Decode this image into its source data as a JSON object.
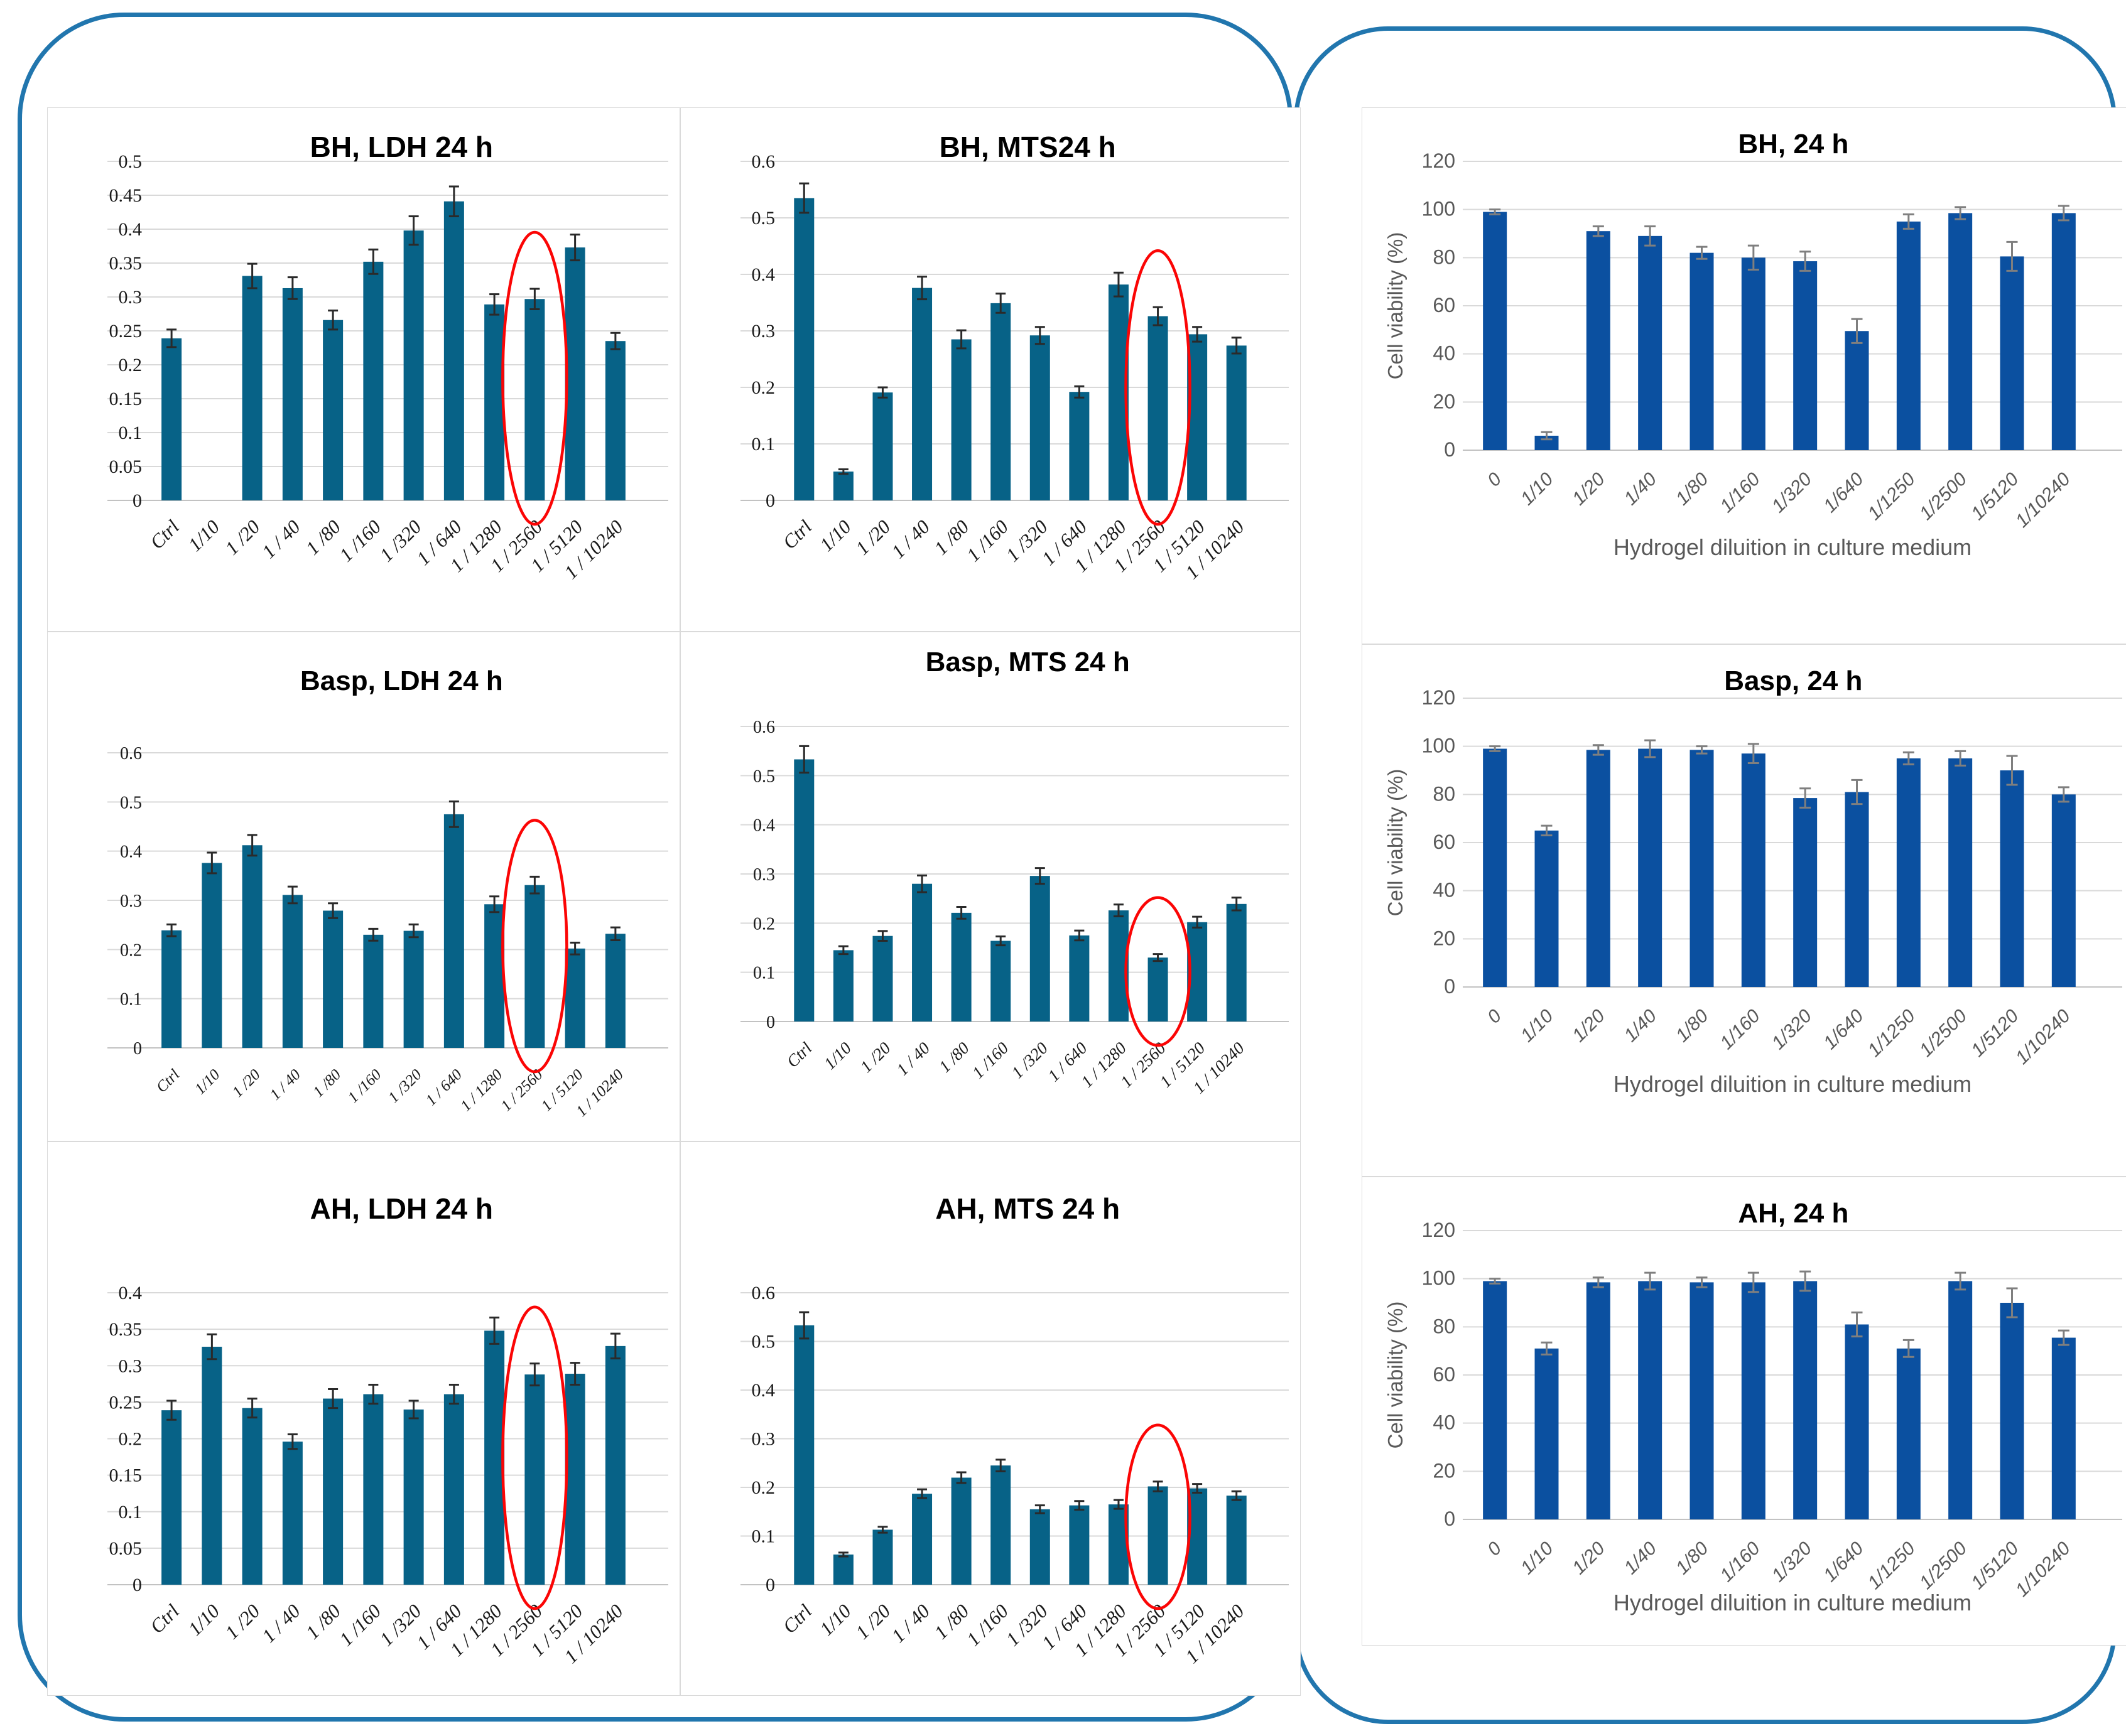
{
  "colors": {
    "panel_border": "#2176ae",
    "left_bar": "#076287",
    "right_bar": "#0b50a0",
    "gridline": "#d9d9d9",
    "baseline": "#c2c2c2",
    "cell_border": "#dadada",
    "error_left": "#2a2a2a",
    "error_right": "#7f7f7f",
    "highlight_ellipse": "#fb0505",
    "right_text": "#595959",
    "left_text": "#1a1a1a",
    "title_text": "#000000"
  },
  "artifacts": {
    "erased_title_dashes": "-- -  -- -- --- -  - -"
  },
  "chart_data": [
    {
      "id": "bh-ldh",
      "panel": "left",
      "type": "bar",
      "title": "BH, LDH 24 h",
      "categories": [
        "Ctrl",
        "1/10",
        "1 /20",
        "1 / 40",
        "1 /80",
        "1 /160",
        "1 /320",
        "1 / 640",
        "1 / 1280",
        "1 / 2560",
        "1 / 5120",
        "1 / 10240"
      ],
      "values": [
        0.239,
        0,
        0.331,
        0.313,
        0.266,
        0.352,
        0.398,
        0.441,
        0.289,
        0.297,
        0.373,
        0.235
      ],
      "errors": [
        0.013,
        0,
        0.018,
        0.016,
        0.014,
        0.018,
        0.021,
        0.022,
        0.015,
        0.015,
        0.019,
        0.012
      ],
      "ylim": [
        0,
        0.5
      ],
      "ytick_step": 0.05,
      "ytick_labels": [
        "0",
        "0.05",
        "0.1",
        "0.15",
        "0.2",
        "0.25",
        "0.3",
        "0.35",
        "0.4",
        "0.45",
        "0.5"
      ],
      "grid": true,
      "circled_category": "1 / 2560",
      "circled_index": 9
    },
    {
      "id": "bh-mts",
      "panel": "left",
      "type": "bar",
      "title": "BH, MTS24 h",
      "categories": [
        "Ctrl",
        "1/10",
        "1 /20",
        "1 / 40",
        "1 /80",
        "1 /160",
        "1 /320",
        "1 / 640",
        "1 / 1280",
        "1 / 2560",
        "1 / 5120",
        "1 / 10240"
      ],
      "values": [
        0.535,
        0.051,
        0.191,
        0.376,
        0.285,
        0.349,
        0.292,
        0.192,
        0.382,
        0.326,
        0.294,
        0.274
      ],
      "errors": [
        0.026,
        0.004,
        0.009,
        0.02,
        0.016,
        0.017,
        0.015,
        0.01,
        0.021,
        0.016,
        0.013,
        0.014
      ],
      "ylim": [
        0,
        0.6
      ],
      "ytick_step": 0.1,
      "ytick_labels": [
        "0",
        "0.1",
        "0.2",
        "0.3",
        "0.4",
        "0.5",
        "0.6"
      ],
      "grid": true,
      "circled_category": "1 / 2560",
      "circled_index": 9
    },
    {
      "id": "basp-ldh",
      "panel": "left",
      "type": "bar",
      "title": "Basp, LDH 24 h",
      "categories": [
        "Ctrl",
        "1/10",
        "1 /20",
        "1 / 40",
        "1 /80",
        "1 /160",
        "1 /320",
        "1 / 640",
        "1 / 1280",
        "1 / 2560",
        "1 / 5120",
        "1 / 10240"
      ],
      "values": [
        0.239,
        0.376,
        0.412,
        0.311,
        0.279,
        0.23,
        0.238,
        0.475,
        0.292,
        0.331,
        0.202,
        0.232
      ],
      "errors": [
        0.012,
        0.021,
        0.021,
        0.017,
        0.015,
        0.012,
        0.013,
        0.026,
        0.016,
        0.017,
        0.012,
        0.013
      ],
      "ylim": [
        0,
        0.6
      ],
      "ytick_step": 0.1,
      "ytick_labels": [
        "0",
        "0.1",
        "0.2",
        "0.3",
        "0.4",
        "0.5",
        "0.6"
      ],
      "grid": true,
      "circled_category": "1 / 2560",
      "circled_index": 9
    },
    {
      "id": "basp-mts",
      "panel": "left",
      "type": "bar",
      "title": "Basp, MTS 24 h",
      "categories": [
        "Ctrl",
        "1/10",
        "1 /20",
        "1 / 40",
        "1 /80",
        "1 /160",
        "1 /320",
        "1 / 640",
        "1 / 1280",
        "1 / 2560",
        "1 / 5120",
        "1 / 10240"
      ],
      "values": [
        0.533,
        0.145,
        0.174,
        0.28,
        0.221,
        0.164,
        0.296,
        0.175,
        0.226,
        0.13,
        0.202,
        0.239
      ],
      "errors": [
        0.027,
        0.008,
        0.01,
        0.017,
        0.012,
        0.009,
        0.016,
        0.01,
        0.012,
        0.007,
        0.011,
        0.013
      ],
      "ylim": [
        0,
        0.6
      ],
      "ytick_step": 0.1,
      "ytick_labels": [
        "0",
        "0.1",
        "0.2",
        "0.3",
        "0.4",
        "0.5",
        "0.6"
      ],
      "grid": true,
      "circled_category": "1 / 2560",
      "circled_index": 9
    },
    {
      "id": "ah-ldh",
      "panel": "left",
      "type": "bar",
      "title": "AH, LDH 24 h",
      "categories": [
        "Ctrl",
        "1/10",
        "1 /20",
        "1 / 40",
        "1 /80",
        "1 /160",
        "1 /320",
        "1 / 640",
        "1 / 1280",
        "1 / 2560",
        "1 / 5120",
        "1 / 10240"
      ],
      "values": [
        0.239,
        0.326,
        0.242,
        0.196,
        0.255,
        0.261,
        0.24,
        0.261,
        0.348,
        0.288,
        0.289,
        0.327
      ],
      "errors": [
        0.013,
        0.017,
        0.013,
        0.01,
        0.013,
        0.013,
        0.012,
        0.013,
        0.018,
        0.015,
        0.015,
        0.017
      ],
      "ylim": [
        0,
        0.4
      ],
      "ytick_step": 0.05,
      "ytick_labels": [
        "0",
        "0.05",
        "0.1",
        "0.15",
        "0.2",
        "0.25",
        "0.3",
        "0.35",
        "0.4"
      ],
      "grid": true,
      "circled_category": "1 / 2560",
      "circled_index": 9
    },
    {
      "id": "ah-mts",
      "panel": "left",
      "type": "bar",
      "title": "AH, MTS 24 h",
      "categories": [
        "Ctrl",
        "1/10",
        "1 /20",
        "1 / 40",
        "1 /80",
        "1 /160",
        "1 /320",
        "1 / 640",
        "1 / 1280",
        "1 / 2560",
        "1 / 5120",
        "1 / 10240"
      ],
      "values": [
        0.533,
        0.062,
        0.113,
        0.187,
        0.22,
        0.245,
        0.155,
        0.163,
        0.165,
        0.202,
        0.198,
        0.183
      ],
      "errors": [
        0.027,
        0.004,
        0.006,
        0.009,
        0.011,
        0.012,
        0.008,
        0.009,
        0.009,
        0.01,
        0.009,
        0.009
      ],
      "ylim": [
        0,
        0.6
      ],
      "ytick_step": 0.1,
      "ytick_labels": [
        "0",
        "0.1",
        "0.2",
        "0.3",
        "0.4",
        "0.5",
        "0.6"
      ],
      "grid": true,
      "circled_category": "1 / 2560",
      "circled_index": 9
    },
    {
      "id": "bh-24h",
      "panel": "right",
      "type": "bar",
      "title": "BH, 24 h",
      "ylabel": "Cell viability (%)",
      "xlabel": "Hydrogel diluition in culture medium",
      "categories": [
        "0",
        "1/10",
        "1/20",
        "1/40",
        "1/80",
        "1/160",
        "1/320",
        "1/640",
        "1/1250",
        "1/2500",
        "1/5120",
        "1/10240"
      ],
      "values": [
        99,
        6,
        91,
        89,
        82,
        80,
        78.5,
        49.5,
        95,
        98.5,
        80.5,
        98.5
      ],
      "errors": [
        1,
        1.5,
        2,
        4,
        2.5,
        5,
        4,
        5,
        3,
        2.5,
        6,
        3
      ],
      "ylim": [
        0,
        120
      ],
      "ytick_step": 20,
      "ytick_labels": [
        "0",
        "20",
        "40",
        "60",
        "80",
        "100",
        "120"
      ],
      "grid": true,
      "circled_index": null
    },
    {
      "id": "basp-24h",
      "panel": "right",
      "type": "bar",
      "title": "Basp, 24 h",
      "ylabel": "Cell viability (%)",
      "xlabel": "Hydrogel diluition in culture medium",
      "categories": [
        "0",
        "1/10",
        "1/20",
        "1/40",
        "1/80",
        "1/160",
        "1/320",
        "1/640",
        "1/1250",
        "1/2500",
        "1/5120",
        "1/10240"
      ],
      "values": [
        99,
        65,
        98.5,
        99,
        98.5,
        97,
        78.5,
        81,
        95,
        95,
        90,
        80
      ],
      "errors": [
        1,
        2,
        2,
        3.5,
        1.5,
        4,
        4,
        5,
        2.5,
        3,
        6,
        3
      ],
      "ylim": [
        0,
        120
      ],
      "ytick_step": 20,
      "ytick_labels": [
        "0",
        "20",
        "40",
        "60",
        "80",
        "100",
        "120"
      ],
      "grid": true,
      "circled_index": null
    },
    {
      "id": "ah-24h",
      "panel": "right",
      "type": "bar",
      "title": "AH, 24 h",
      "ylabel": "Cell viability (%)",
      "xlabel": "Hydrogel diluition in culture medium",
      "categories": [
        "0",
        "1/10",
        "1/20",
        "1/40",
        "1/80",
        "1/160",
        "1/320",
        "1/640",
        "1/1250",
        "1/2500",
        "1/5120",
        "1/10240"
      ],
      "values": [
        99,
        71,
        98.5,
        99,
        98.5,
        98.5,
        99,
        81,
        71,
        99,
        90,
        75.5
      ],
      "errors": [
        1,
        2.5,
        2,
        3.5,
        2,
        4,
        4,
        5,
        3.5,
        3.5,
        6,
        3
      ],
      "ylim": [
        0,
        120
      ],
      "ytick_step": 20,
      "ytick_labels": [
        "0",
        "20",
        "40",
        "60",
        "80",
        "100",
        "120"
      ],
      "grid": true,
      "circled_index": null
    }
  ]
}
